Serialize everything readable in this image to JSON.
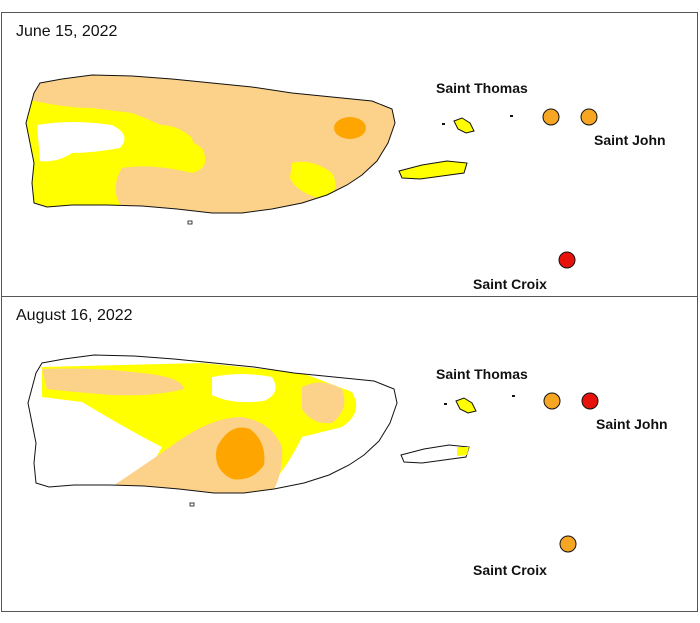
{
  "panels": [
    {
      "date": "June 15, 2022",
      "labels": {
        "saint_thomas": "Saint Thomas",
        "saint_john": "Saint John",
        "saint_croix": "Saint Croix"
      },
      "markers": {
        "saint_thomas": {
          "color": "#F6A623"
        },
        "saint_john": {
          "color": "#F6A623"
        },
        "saint_croix": {
          "color": "#E8120C"
        }
      }
    },
    {
      "date": "August 16, 2022",
      "labels": {
        "saint_thomas": "Saint Thomas",
        "saint_john": "Saint John",
        "saint_croix": "Saint Croix"
      },
      "markers": {
        "saint_thomas": {
          "color": "#F6A623"
        },
        "saint_john": {
          "color": "#E8120C"
        },
        "saint_croix": {
          "color": "#F6A623"
        }
      }
    }
  ],
  "colors": {
    "yellow": "#FFFF00",
    "tan": "#FCD28A",
    "orange": "#FFA500",
    "red": "#E8120C",
    "outline": "#111111"
  }
}
